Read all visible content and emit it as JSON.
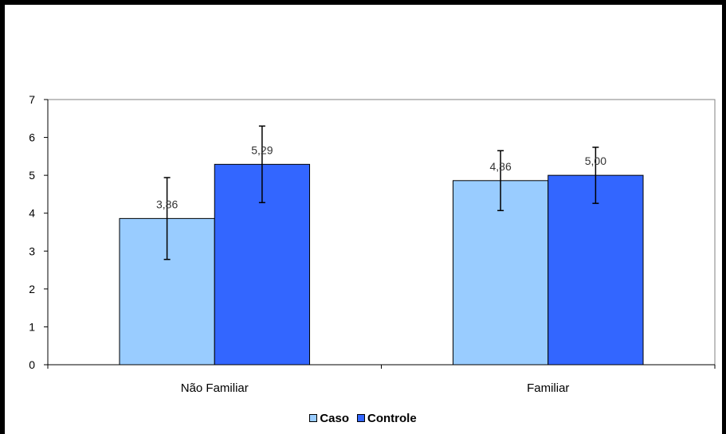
{
  "chart_data": {
    "type": "bar",
    "categories": [
      "Não Familiar",
      "Familiar"
    ],
    "series": [
      {
        "name": "Caso",
        "values": [
          3.86,
          4.86
        ],
        "error": [
          1.08,
          0.79
        ],
        "labels": [
          "3,86",
          "4,86"
        ],
        "color": "#99ccff"
      },
      {
        "name": "Controle",
        "values": [
          5.29,
          5.0
        ],
        "error": [
          1.01,
          0.74
        ],
        "labels": [
          "5,29",
          "5,00"
        ],
        "color": "#3366ff"
      }
    ],
    "title": "",
    "xlabel": "",
    "ylabel": "",
    "ylim": [
      0,
      7
    ],
    "yticks": [
      "0",
      "1",
      "2",
      "3",
      "4",
      "5",
      "6",
      "7"
    ],
    "grid": false,
    "legend_position": "bottom"
  }
}
